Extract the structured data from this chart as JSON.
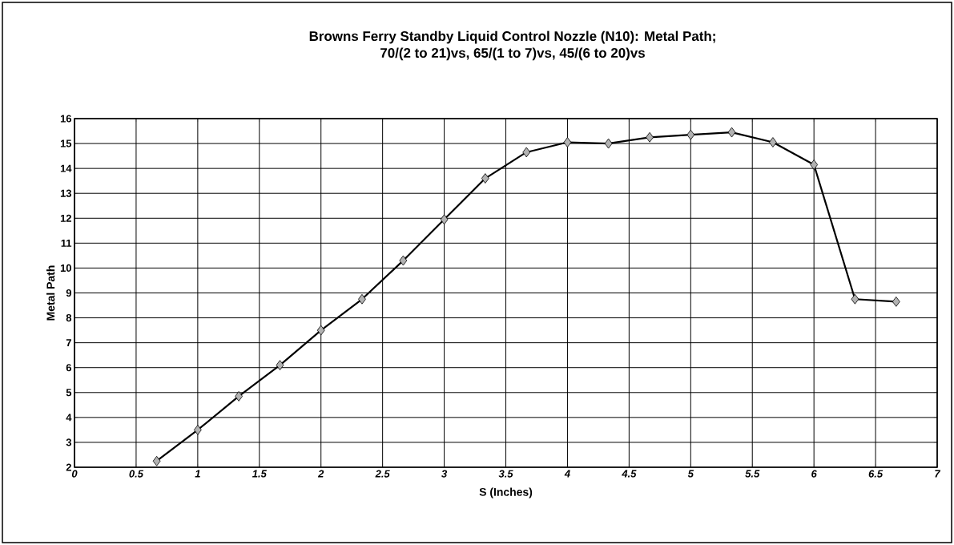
{
  "chart_data": {
    "type": "line",
    "title": "Browns Ferry Standby Liquid Control Nozzle (N10):  Metal Path;",
    "subtitle": "70/(2 to 21)vs, 65/(1 to 7)vs, 45/(6 to 20)vs",
    "xlabel": "S (Inches)",
    "ylabel": "Metal Path",
    "x": [
      0.667,
      1,
      1.333,
      1.667,
      2,
      2.333,
      2.667,
      3,
      3.333,
      3.667,
      4,
      4.333,
      4.667,
      5,
      5.333,
      5.667,
      6,
      6.333,
      6.667
    ],
    "series": [
      {
        "color": "#000000",
        "values": [
          2.25,
          3.5,
          4.85,
          6.1,
          7.5,
          8.75,
          10.3,
          11.95,
          13.6,
          14.65,
          15.05,
          15.0,
          15.25,
          15.35,
          15.45,
          15.05,
          14.15,
          8.75,
          8.65
        ]
      }
    ],
    "xlim": [
      0,
      7
    ],
    "xticks": [
      0,
      0.5,
      1,
      1.5,
      2,
      2.5,
      3,
      3.5,
      4,
      4.5,
      5,
      5.5,
      6,
      6.5,
      7
    ],
    "ylim": [
      2,
      16
    ],
    "yticks": [
      2,
      3,
      4,
      5,
      6,
      7,
      8,
      9,
      10,
      11,
      12,
      13,
      14,
      15,
      16
    ],
    "grid": true,
    "marker": "diamond",
    "line_style": "solid"
  }
}
